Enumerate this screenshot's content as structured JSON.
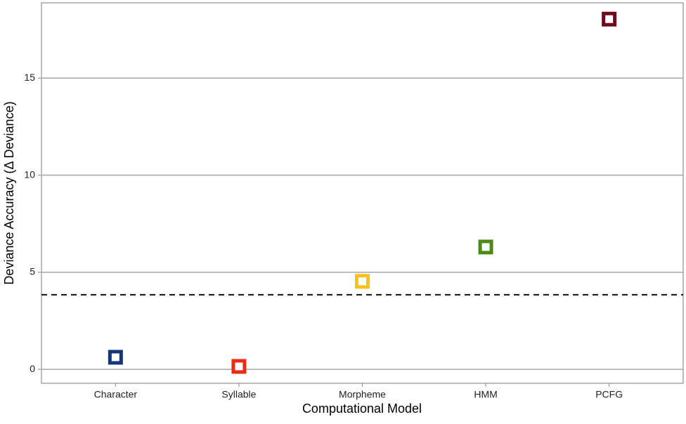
{
  "chart_data": {
    "type": "scatter",
    "x_label": "Computational Model",
    "y_label": "Deviance Accuracy (Δ Deviance)",
    "categories": [
      "Character",
      "Syllable",
      "Morpheme",
      "HMM",
      "PCFG"
    ],
    "values": [
      0.62,
      0.15,
      4.53,
      6.3,
      18.04
    ],
    "colors": [
      "#15347a",
      "#ee2a12",
      "#f8c316",
      "#4a8a17",
      "#6d0a1c"
    ],
    "reference_line": 3.84,
    "ylim": [
      -0.72,
      18.88
    ],
    "yticks": [
      0,
      5,
      10,
      15
    ],
    "grid": true
  }
}
